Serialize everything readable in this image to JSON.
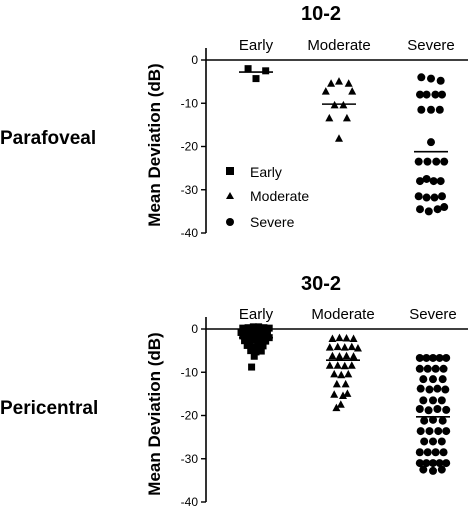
{
  "colors": {
    "ink": "#000000",
    "background": "#ffffff"
  },
  "row_labels": {
    "top": "Parafoveal",
    "bottom": "Pericentral"
  },
  "chart_data": [
    {
      "type": "scatter",
      "title": "10-2",
      "xlabel": "",
      "ylabel": "Mean Deviation (dB)",
      "ylim": [
        -40,
        0
      ],
      "yticks": [
        0,
        -10,
        -20,
        -30,
        -40
      ],
      "categories": [
        "Early",
        "Moderate",
        "Severe"
      ],
      "reference_line_y": 0,
      "legend": {
        "position": "lower-left",
        "entries": [
          {
            "label": "Early",
            "marker": "square"
          },
          {
            "label": "Moderate",
            "marker": "triangle"
          },
          {
            "label": "Severe",
            "marker": "circle"
          }
        ]
      },
      "series": [
        {
          "name": "Early",
          "marker": "square",
          "mean": -2.8,
          "points": [
            [
              -0.18,
              -2
            ],
            [
              0.0,
              -4.3
            ],
            [
              0.22,
              -2.5
            ]
          ]
        },
        {
          "name": "Moderate",
          "marker": "triangle",
          "mean": -10.2,
          "points": [
            [
              -0.18,
              -5.5
            ],
            [
              0.0,
              -5
            ],
            [
              0.22,
              -5.5
            ],
            [
              -0.3,
              -7.3
            ],
            [
              0.3,
              -7.3
            ],
            [
              -0.1,
              -10.5
            ],
            [
              0.1,
              -10.5
            ],
            [
              -0.22,
              -13.5
            ],
            [
              0.18,
              -13.5
            ],
            [
              0.0,
              -18.2
            ]
          ]
        },
        {
          "name": "Severe",
          "marker": "circle",
          "mean": -21.2,
          "points": [
            [
              -0.22,
              -4
            ],
            [
              0.0,
              -4.3
            ],
            [
              0.22,
              -4.8
            ],
            [
              -0.25,
              -8
            ],
            [
              -0.1,
              -8
            ],
            [
              0.1,
              -8
            ],
            [
              0.25,
              -8
            ],
            [
              -0.22,
              -11.5
            ],
            [
              0.0,
              -11.5
            ],
            [
              0.2,
              -11.5
            ],
            [
              0.0,
              -19
            ],
            [
              -0.28,
              -23.5
            ],
            [
              -0.08,
              -23.5
            ],
            [
              0.12,
              -23.5
            ],
            [
              0.3,
              -23.5
            ],
            [
              -0.25,
              -28
            ],
            [
              -0.1,
              -27.5
            ],
            [
              0.06,
              -28
            ],
            [
              0.22,
              -28
            ],
            [
              -0.28,
              -31.5
            ],
            [
              -0.1,
              -31.8
            ],
            [
              0.08,
              -31.8
            ],
            [
              0.25,
              -31.5
            ],
            [
              -0.25,
              -34.5
            ],
            [
              -0.05,
              -35
            ],
            [
              0.15,
              -34.5
            ],
            [
              0.3,
              -34
            ]
          ]
        }
      ]
    },
    {
      "type": "scatter",
      "title": "30-2",
      "xlabel": "",
      "ylabel": "Mean Deviation (dB)",
      "ylim": [
        -40,
        0
      ],
      "yticks": [
        0,
        -10,
        -20,
        -30,
        -40
      ],
      "categories": [
        "Early",
        "Moderate",
        "Severe"
      ],
      "reference_line_y": 0,
      "series": [
        {
          "name": "Early",
          "marker": "square",
          "mean": -2.0,
          "points": [
            [
              -0.3,
              0.2
            ],
            [
              -0.18,
              0.3
            ],
            [
              -0.06,
              0.5
            ],
            [
              0.06,
              0.5
            ],
            [
              0.18,
              0.3
            ],
            [
              0.3,
              0.2
            ],
            [
              -0.34,
              -0.8
            ],
            [
              -0.22,
              -0.6
            ],
            [
              -0.1,
              -1
            ],
            [
              0.02,
              -0.7
            ],
            [
              0.14,
              -0.9
            ],
            [
              0.26,
              -0.8
            ],
            [
              -0.3,
              -1.6
            ],
            [
              -0.18,
              -2
            ],
            [
              -0.06,
              -1.8
            ],
            [
              0.06,
              -2.2
            ],
            [
              0.18,
              -1.6
            ],
            [
              0.3,
              -2
            ],
            [
              -0.26,
              -2.7
            ],
            [
              -0.14,
              -3
            ],
            [
              -0.02,
              -2.6
            ],
            [
              0.1,
              -3
            ],
            [
              0.22,
              -2.8
            ],
            [
              -0.2,
              -3.8
            ],
            [
              -0.08,
              -4.2
            ],
            [
              0.04,
              -4
            ],
            [
              0.16,
              -3.9
            ],
            [
              -0.12,
              -5
            ],
            [
              0.0,
              -5.3
            ],
            [
              0.12,
              -5.1
            ],
            [
              -0.04,
              -6.3
            ],
            [
              -0.1,
              -8.8
            ]
          ]
        },
        {
          "name": "Moderate",
          "marker": "triangle",
          "mean": -7.2,
          "points": [
            [
              -0.24,
              -2.3
            ],
            [
              -0.08,
              -2.1
            ],
            [
              0.08,
              -2.2
            ],
            [
              0.24,
              -2.3
            ],
            [
              -0.3,
              -4.3
            ],
            [
              -0.12,
              -4.2
            ],
            [
              0.04,
              -4.3
            ],
            [
              0.2,
              -4.2
            ],
            [
              0.34,
              -4.5
            ],
            [
              -0.24,
              -6.3
            ],
            [
              -0.08,
              -6.4
            ],
            [
              0.08,
              -6.3
            ],
            [
              0.24,
              -6.4
            ],
            [
              -0.3,
              -8.5
            ],
            [
              -0.12,
              -8.5
            ],
            [
              0.04,
              -8.6
            ],
            [
              0.2,
              -8.5
            ],
            [
              -0.2,
              -10.5
            ],
            [
              -0.04,
              -10.7
            ],
            [
              0.12,
              -10.5
            ],
            [
              -0.14,
              -12.8
            ],
            [
              0.06,
              -12.8
            ],
            [
              -0.2,
              -15.2
            ],
            [
              0.0,
              -15.5
            ],
            [
              0.1,
              -15
            ],
            [
              -0.05,
              -17.5
            ],
            [
              -0.15,
              -18.3
            ]
          ]
        },
        {
          "name": "Severe",
          "marker": "circle",
          "mean": -20.3,
          "points": [
            [
              -0.3,
              -6.7
            ],
            [
              -0.15,
              -6.7
            ],
            [
              0.0,
              -6.7
            ],
            [
              0.15,
              -6.7
            ],
            [
              0.3,
              -6.7
            ],
            [
              -0.3,
              -9.2
            ],
            [
              -0.12,
              -9.2
            ],
            [
              0.06,
              -9.2
            ],
            [
              0.24,
              -9.2
            ],
            [
              -0.22,
              -11.6
            ],
            [
              0.0,
              -11.6
            ],
            [
              0.22,
              -11.6
            ],
            [
              -0.28,
              -13.8
            ],
            [
              -0.08,
              -14
            ],
            [
              0.1,
              -13.8
            ],
            [
              0.28,
              -14
            ],
            [
              -0.22,
              -16.5
            ],
            [
              0.0,
              -16.5
            ],
            [
              0.2,
              -16.5
            ],
            [
              -0.3,
              -18.5
            ],
            [
              -0.1,
              -18.8
            ],
            [
              0.1,
              -18.5
            ],
            [
              0.3,
              -18.7
            ],
            [
              -0.2,
              -21.2
            ],
            [
              0.0,
              -21
            ],
            [
              0.22,
              -21.2
            ],
            [
              -0.28,
              -23.6
            ],
            [
              -0.08,
              -23.6
            ],
            [
              0.12,
              -23.6
            ],
            [
              0.3,
              -23.6
            ],
            [
              -0.2,
              -26
            ],
            [
              0.0,
              -26
            ],
            [
              0.2,
              -26
            ],
            [
              -0.3,
              -28.5
            ],
            [
              -0.12,
              -28.5
            ],
            [
              0.06,
              -28.5
            ],
            [
              0.24,
              -28.5
            ],
            [
              -0.3,
              -31
            ],
            [
              -0.15,
              -31
            ],
            [
              0.0,
              -31
            ],
            [
              0.15,
              -31
            ],
            [
              0.3,
              -31
            ],
            [
              -0.22,
              -32.5
            ],
            [
              0.0,
              -32.8
            ],
            [
              0.2,
              -32.5
            ]
          ]
        }
      ]
    }
  ]
}
